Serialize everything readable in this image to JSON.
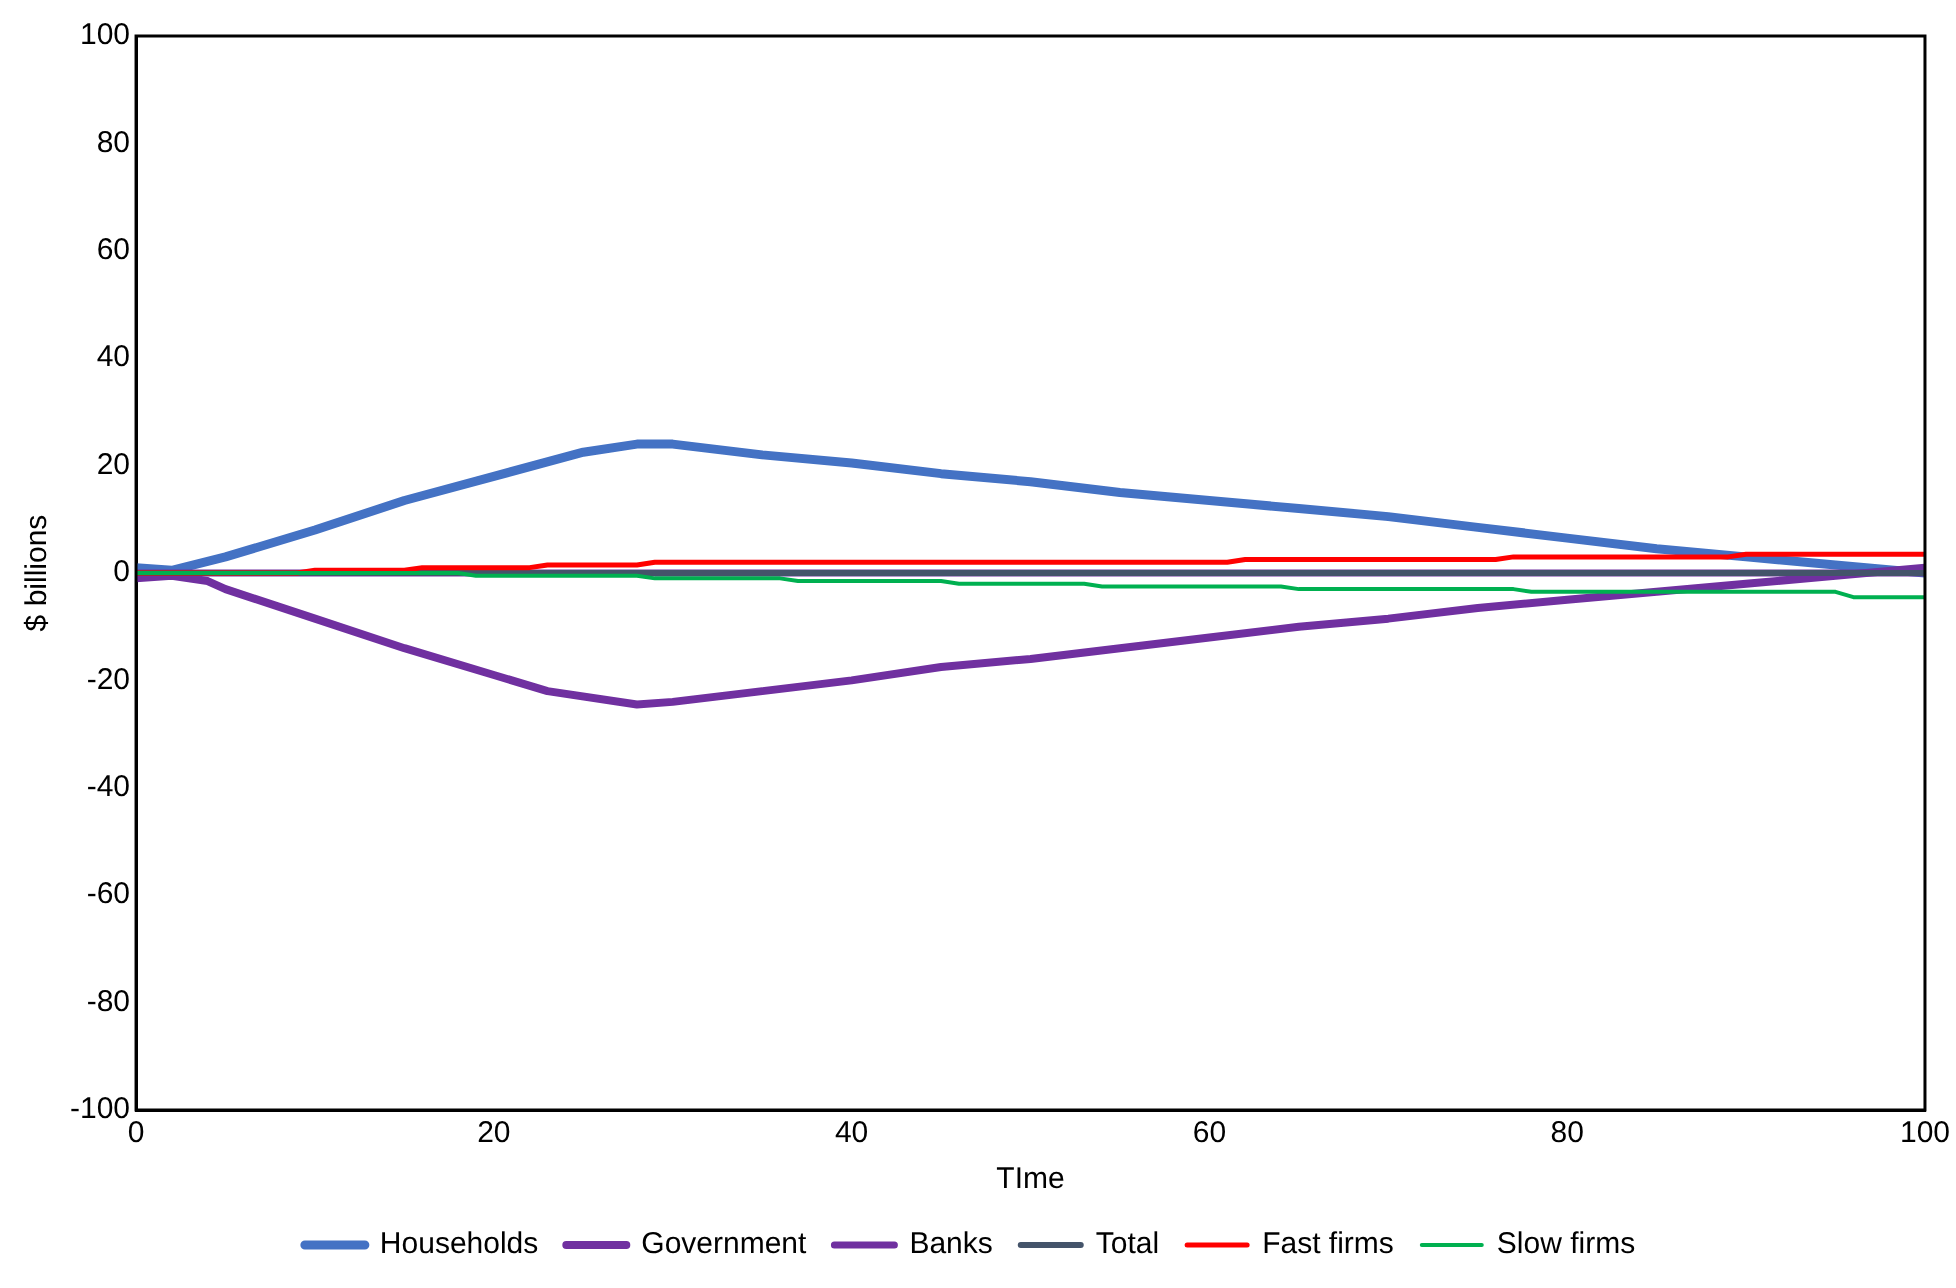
{
  "chart_data": {
    "type": "line",
    "xlabel": "TIme",
    "ylabel": "$ billions",
    "xlim": [
      0,
      100
    ],
    "xticks": [
      0,
      20,
      40,
      60,
      80,
      100
    ],
    "ylim": [
      -100,
      100
    ],
    "yticks": [
      -100,
      -80,
      -60,
      -40,
      -20,
      0,
      20,
      40,
      60,
      80,
      100
    ],
    "grid": false,
    "legend": "bottom",
    "marker": "none",
    "line_style": "solid",
    "series": [
      {
        "name": "Households",
        "color": "#4472c4",
        "x": [
          0,
          2,
          5,
          10,
          15,
          20,
          25,
          28,
          30,
          35,
          40,
          45,
          50,
          55,
          60,
          65,
          70,
          75,
          80,
          85,
          90,
          95,
          100
        ],
        "values": [
          1,
          0.5,
          3,
          8,
          13.5,
          18,
          22.5,
          24,
          24,
          22,
          20.5,
          18.5,
          17,
          15,
          13.5,
          12,
          10.5,
          8.5,
          6.5,
          4.5,
          3,
          1.5,
          0
        ]
      },
      {
        "name": "Government",
        "color": "#7030a0",
        "x": [
          0,
          2,
          4,
          5,
          10,
          15,
          20,
          23,
          28,
          30,
          35,
          40,
          45,
          50,
          55,
          60,
          65,
          70,
          75,
          80,
          85,
          90,
          95,
          100
        ],
        "values": [
          -1,
          -0.5,
          -1.5,
          -3,
          -8.5,
          -14,
          -19,
          -22,
          -24.5,
          -24,
          -22,
          -20,
          -17.5,
          -16,
          -14,
          -12,
          -10,
          -8.5,
          -6.5,
          -5,
          -3.5,
          -2,
          -0.5,
          1
        ]
      },
      {
        "name": "Banks",
        "color": "#7030a0",
        "x": [
          0,
          20,
          40,
          60,
          80,
          100
        ],
        "values": [
          0,
          0,
          0,
          0,
          0,
          0
        ]
      },
      {
        "name": "Total",
        "color": "#44546a",
        "x": [
          0,
          10,
          20,
          30,
          40,
          50,
          60,
          70,
          80,
          90,
          100
        ],
        "values": [
          0,
          0,
          0,
          0,
          0,
          0,
          0,
          0,
          0,
          0,
          0
        ]
      },
      {
        "name": "Fast firms",
        "color": "#ff0000",
        "x": [
          0,
          9,
          10,
          15,
          16,
          22,
          23,
          28,
          29,
          61,
          62,
          76,
          77,
          89,
          90,
          100
        ],
        "values": [
          0,
          0,
          0.5,
          0.5,
          1,
          1,
          1.5,
          1.5,
          2,
          2,
          2.5,
          2.5,
          3,
          3,
          3.5,
          3.5
        ]
      },
      {
        "name": "Slow firms",
        "color": "#00b050",
        "x": [
          0,
          18,
          19,
          28,
          29,
          36,
          37,
          45,
          46,
          53,
          54,
          64,
          65,
          77,
          78,
          95,
          96,
          100
        ],
        "values": [
          0,
          0,
          -0.5,
          -0.5,
          -1,
          -1,
          -1.5,
          -1.5,
          -2,
          -2,
          -2.5,
          -2.5,
          -3,
          -3,
          -3.5,
          -3.5,
          -4.5,
          -4.5
        ]
      }
    ]
  }
}
